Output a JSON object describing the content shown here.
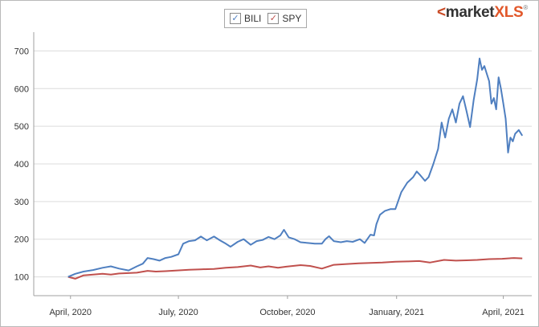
{
  "legend": {
    "items": [
      {
        "label": "BILI",
        "color": "#4f7fc0",
        "checked": true
      },
      {
        "label": "SPY",
        "color": "#c0504d",
        "checked": true
      }
    ]
  },
  "logo": {
    "prefix": "<",
    "brand": "market",
    "suffix": "XLS",
    "mark": "®"
  },
  "chart_data": {
    "type": "line",
    "title": "",
    "xlabel": "",
    "ylabel": "",
    "ylim": [
      50,
      750
    ],
    "grid": true,
    "legend_position": "top-center",
    "y_ticks": [
      100,
      200,
      300,
      400,
      500,
      600,
      700
    ],
    "x_ticks": [
      {
        "label": "April, 2020",
        "date": "2020-04-01"
      },
      {
        "label": "July, 2020",
        "date": "2020-07-01"
      },
      {
        "label": "October, 2020",
        "date": "2020-10-01"
      },
      {
        "label": "January, 2021",
        "date": "2021-01-01"
      },
      {
        "label": "April, 2021",
        "date": "2021-04-01"
      }
    ],
    "series": [
      {
        "name": "BILI",
        "color": "#4f7fc0",
        "points": [
          [
            "2020-03-30",
            100
          ],
          [
            "2020-04-05",
            108
          ],
          [
            "2020-04-12",
            114
          ],
          [
            "2020-04-20",
            118
          ],
          [
            "2020-04-28",
            124
          ],
          [
            "2020-05-05",
            128
          ],
          [
            "2020-05-12",
            122
          ],
          [
            "2020-05-20",
            117
          ],
          [
            "2020-05-27",
            128
          ],
          [
            "2020-06-01",
            135
          ],
          [
            "2020-06-05",
            150
          ],
          [
            "2020-06-10",
            147
          ],
          [
            "2020-06-15",
            143
          ],
          [
            "2020-06-20",
            150
          ],
          [
            "2020-06-25",
            153
          ],
          [
            "2020-07-01",
            160
          ],
          [
            "2020-07-05",
            188
          ],
          [
            "2020-07-10",
            195
          ],
          [
            "2020-07-15",
            197
          ],
          [
            "2020-07-20",
            207
          ],
          [
            "2020-07-25",
            197
          ],
          [
            "2020-07-31",
            207
          ],
          [
            "2020-08-05",
            197
          ],
          [
            "2020-08-10",
            188
          ],
          [
            "2020-08-14",
            180
          ],
          [
            "2020-08-20",
            193
          ],
          [
            "2020-08-25",
            200
          ],
          [
            "2020-08-31",
            185
          ],
          [
            "2020-09-05",
            195
          ],
          [
            "2020-09-10",
            198
          ],
          [
            "2020-09-15",
            206
          ],
          [
            "2020-09-20",
            200
          ],
          [
            "2020-09-25",
            210
          ],
          [
            "2020-09-28",
            225
          ],
          [
            "2020-10-02",
            205
          ],
          [
            "2020-10-07",
            200
          ],
          [
            "2020-10-12",
            192
          ],
          [
            "2020-10-18",
            190
          ],
          [
            "2020-10-24",
            188
          ],
          [
            "2020-10-30",
            188
          ],
          [
            "2020-11-02",
            200
          ],
          [
            "2020-11-05",
            208
          ],
          [
            "2020-11-09",
            195
          ],
          [
            "2020-11-15",
            192
          ],
          [
            "2020-11-20",
            195
          ],
          [
            "2020-11-25",
            193
          ],
          [
            "2020-12-01",
            200
          ],
          [
            "2020-12-05",
            190
          ],
          [
            "2020-12-10",
            212
          ],
          [
            "2020-12-13",
            210
          ],
          [
            "2020-12-15",
            240
          ],
          [
            "2020-12-18",
            265
          ],
          [
            "2020-12-22",
            275
          ],
          [
            "2020-12-27",
            280
          ],
          [
            "2020-12-31",
            280
          ],
          [
            "2021-01-05",
            325
          ],
          [
            "2021-01-10",
            350
          ],
          [
            "2021-01-15",
            365
          ],
          [
            "2021-01-18",
            380
          ],
          [
            "2021-01-21",
            370
          ],
          [
            "2021-01-25",
            355
          ],
          [
            "2021-01-28",
            365
          ],
          [
            "2021-02-01",
            400
          ],
          [
            "2021-02-05",
            440
          ],
          [
            "2021-02-08",
            510
          ],
          [
            "2021-02-11",
            470
          ],
          [
            "2021-02-14",
            520
          ],
          [
            "2021-02-17",
            545
          ],
          [
            "2021-02-20",
            510
          ],
          [
            "2021-02-23",
            560
          ],
          [
            "2021-02-26",
            580
          ],
          [
            "2021-03-01",
            540
          ],
          [
            "2021-03-04",
            498
          ],
          [
            "2021-03-07",
            570
          ],
          [
            "2021-03-10",
            625
          ],
          [
            "2021-03-12",
            680
          ],
          [
            "2021-03-14",
            650
          ],
          [
            "2021-03-16",
            660
          ],
          [
            "2021-03-18",
            640
          ],
          [
            "2021-03-20",
            620
          ],
          [
            "2021-03-22",
            560
          ],
          [
            "2021-03-24",
            575
          ],
          [
            "2021-03-26",
            545
          ],
          [
            "2021-03-28",
            630
          ],
          [
            "2021-03-30",
            600
          ],
          [
            "2021-04-01",
            560
          ],
          [
            "2021-04-03",
            520
          ],
          [
            "2021-04-05",
            430
          ],
          [
            "2021-04-07",
            470
          ],
          [
            "2021-04-09",
            460
          ],
          [
            "2021-04-11",
            480
          ],
          [
            "2021-04-14",
            490
          ],
          [
            "2021-04-17",
            475
          ]
        ]
      },
      {
        "name": "SPY",
        "color": "#c0504d",
        "points": [
          [
            "2020-03-30",
            100
          ],
          [
            "2020-04-05",
            95
          ],
          [
            "2020-04-12",
            104
          ],
          [
            "2020-04-20",
            106
          ],
          [
            "2020-04-28",
            108
          ],
          [
            "2020-05-05",
            106
          ],
          [
            "2020-05-12",
            109
          ],
          [
            "2020-05-20",
            110
          ],
          [
            "2020-05-27",
            111
          ],
          [
            "2020-06-05",
            116
          ],
          [
            "2020-06-12",
            114
          ],
          [
            "2020-06-20",
            115
          ],
          [
            "2020-06-30",
            117
          ],
          [
            "2020-07-10",
            119
          ],
          [
            "2020-07-20",
            120
          ],
          [
            "2020-07-31",
            121
          ],
          [
            "2020-08-10",
            124
          ],
          [
            "2020-08-20",
            126
          ],
          [
            "2020-08-31",
            130
          ],
          [
            "2020-09-08",
            125
          ],
          [
            "2020-09-15",
            128
          ],
          [
            "2020-09-23",
            124
          ],
          [
            "2020-09-30",
            127
          ],
          [
            "2020-10-12",
            131
          ],
          [
            "2020-10-20",
            129
          ],
          [
            "2020-10-30",
            122
          ],
          [
            "2020-11-09",
            132
          ],
          [
            "2020-11-20",
            134
          ],
          [
            "2020-11-30",
            136
          ],
          [
            "2020-12-10",
            137
          ],
          [
            "2020-12-20",
            138
          ],
          [
            "2020-12-31",
            140
          ],
          [
            "2021-01-10",
            141
          ],
          [
            "2021-01-20",
            142
          ],
          [
            "2021-01-29",
            138
          ],
          [
            "2021-02-10",
            145
          ],
          [
            "2021-02-20",
            143
          ],
          [
            "2021-03-01",
            144
          ],
          [
            "2021-03-10",
            145
          ],
          [
            "2021-03-20",
            147
          ],
          [
            "2021-03-31",
            148
          ],
          [
            "2021-04-10",
            150
          ],
          [
            "2021-04-17",
            149
          ]
        ]
      }
    ]
  }
}
